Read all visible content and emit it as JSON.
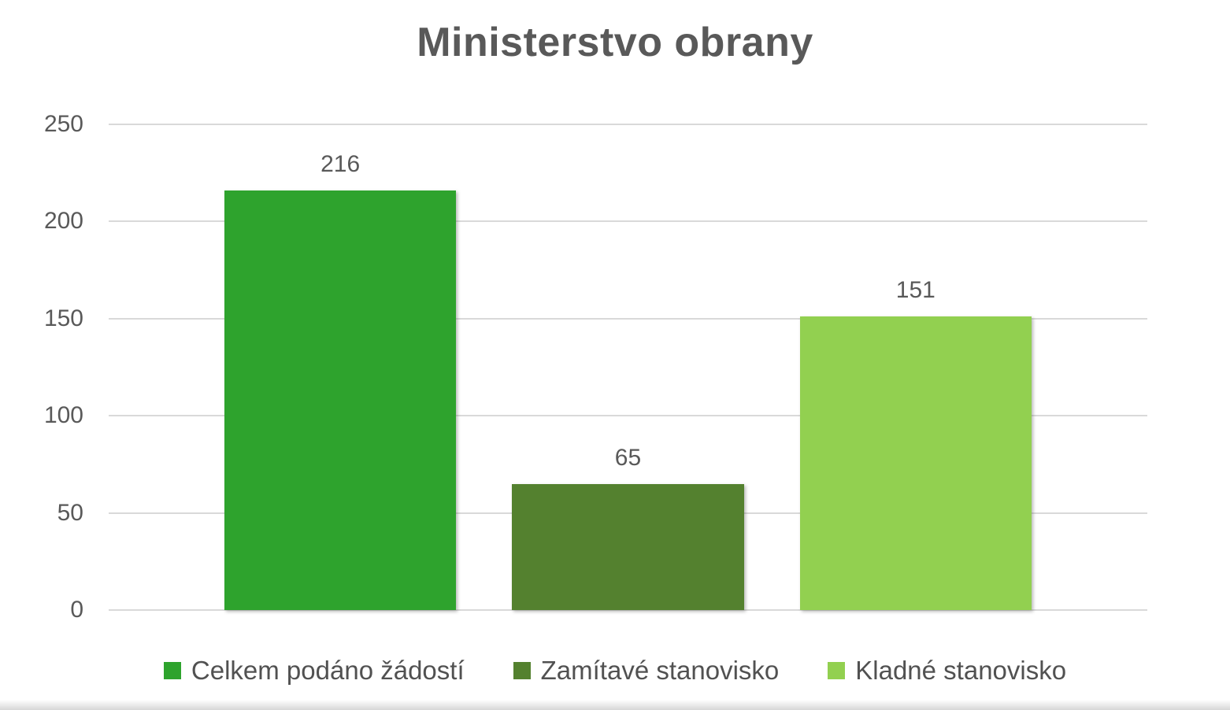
{
  "chart_data": {
    "type": "bar",
    "title": "Ministerstvo obrany",
    "categories": [
      "Celkem podáno žádostí",
      "Zamítavé stanovisko",
      "Kladné stanovisko"
    ],
    "series": [
      {
        "name": "Celkem podáno žádostí",
        "value": 216,
        "color": "#2ea32d"
      },
      {
        "name": "Zamítavé stanovisko",
        "value": 65,
        "color": "#54812f"
      },
      {
        "name": "Kladné stanovisko",
        "value": 151,
        "color": "#92d050"
      }
    ],
    "values_as_labels": [
      "216",
      "65",
      "151"
    ],
    "ylim": [
      0,
      250
    ],
    "yticks": [
      0,
      50,
      100,
      150,
      200,
      250
    ],
    "grid": true,
    "data_labels": true,
    "legend_position": "bottom",
    "title_color": "#595959",
    "axis_text_color": "#595959",
    "grid_color": "#d9d9d9",
    "legend_text_color": "#515151"
  }
}
